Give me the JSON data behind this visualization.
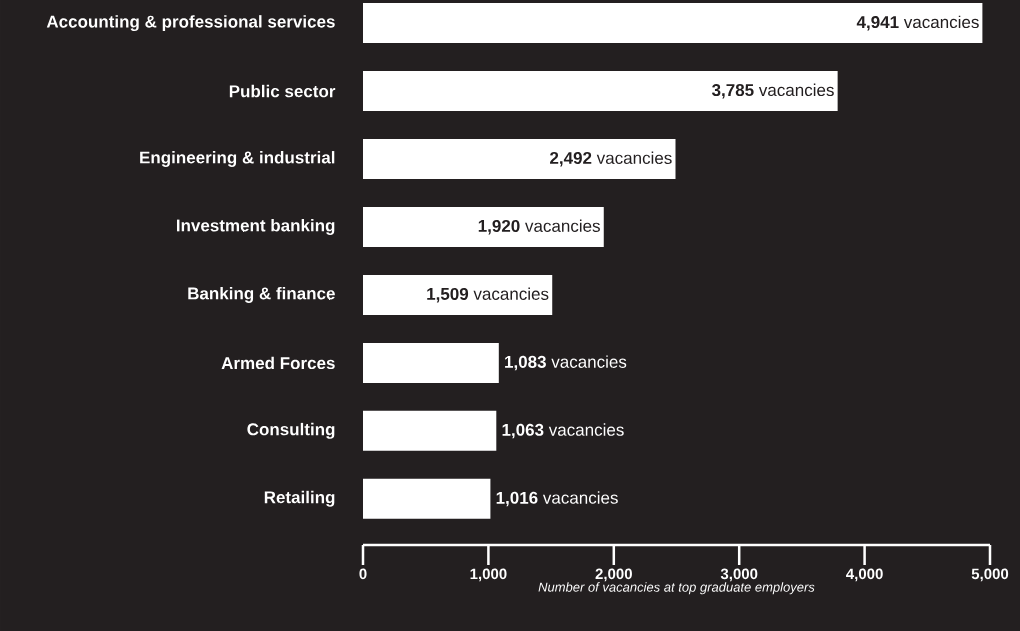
{
  "chart_data": {
    "type": "bar",
    "orientation": "horizontal",
    "xlabel": "Number of vacancies at top graduate employers",
    "categories": [
      "Accounting & professional services",
      "Public sector",
      "Engineering & industrial",
      "Investment banking",
      "Banking & finance",
      "Armed Forces",
      "Consulting",
      "Retailing"
    ],
    "values": [
      4941,
      3785,
      2492,
      1920,
      1509,
      1083,
      1063,
      1016
    ],
    "value_labels": [
      "**4,941** vacancies",
      "**3,785** vacancies",
      "**2,492** vacancies",
      "**1,920** vacancies",
      "**1,509** vacancies",
      "**1,083** vacancies",
      "**1,063** vacancies",
      "**1,016** vacancies"
    ],
    "color": "#ffffff",
    "xlim": [
      0,
      5000
    ],
    "xticks": [
      0,
      {
        "value": 1000,
        "label": "1,000"
      },
      {
        "value": 2000,
        "label": "2,000"
      },
      {
        "value": 3000,
        "label": "3,000"
      },
      {
        "value": 4000,
        "label": "4,000"
      },
      {
        "value": 5000,
        "label": "5,000"
      }
    ]
  }
}
